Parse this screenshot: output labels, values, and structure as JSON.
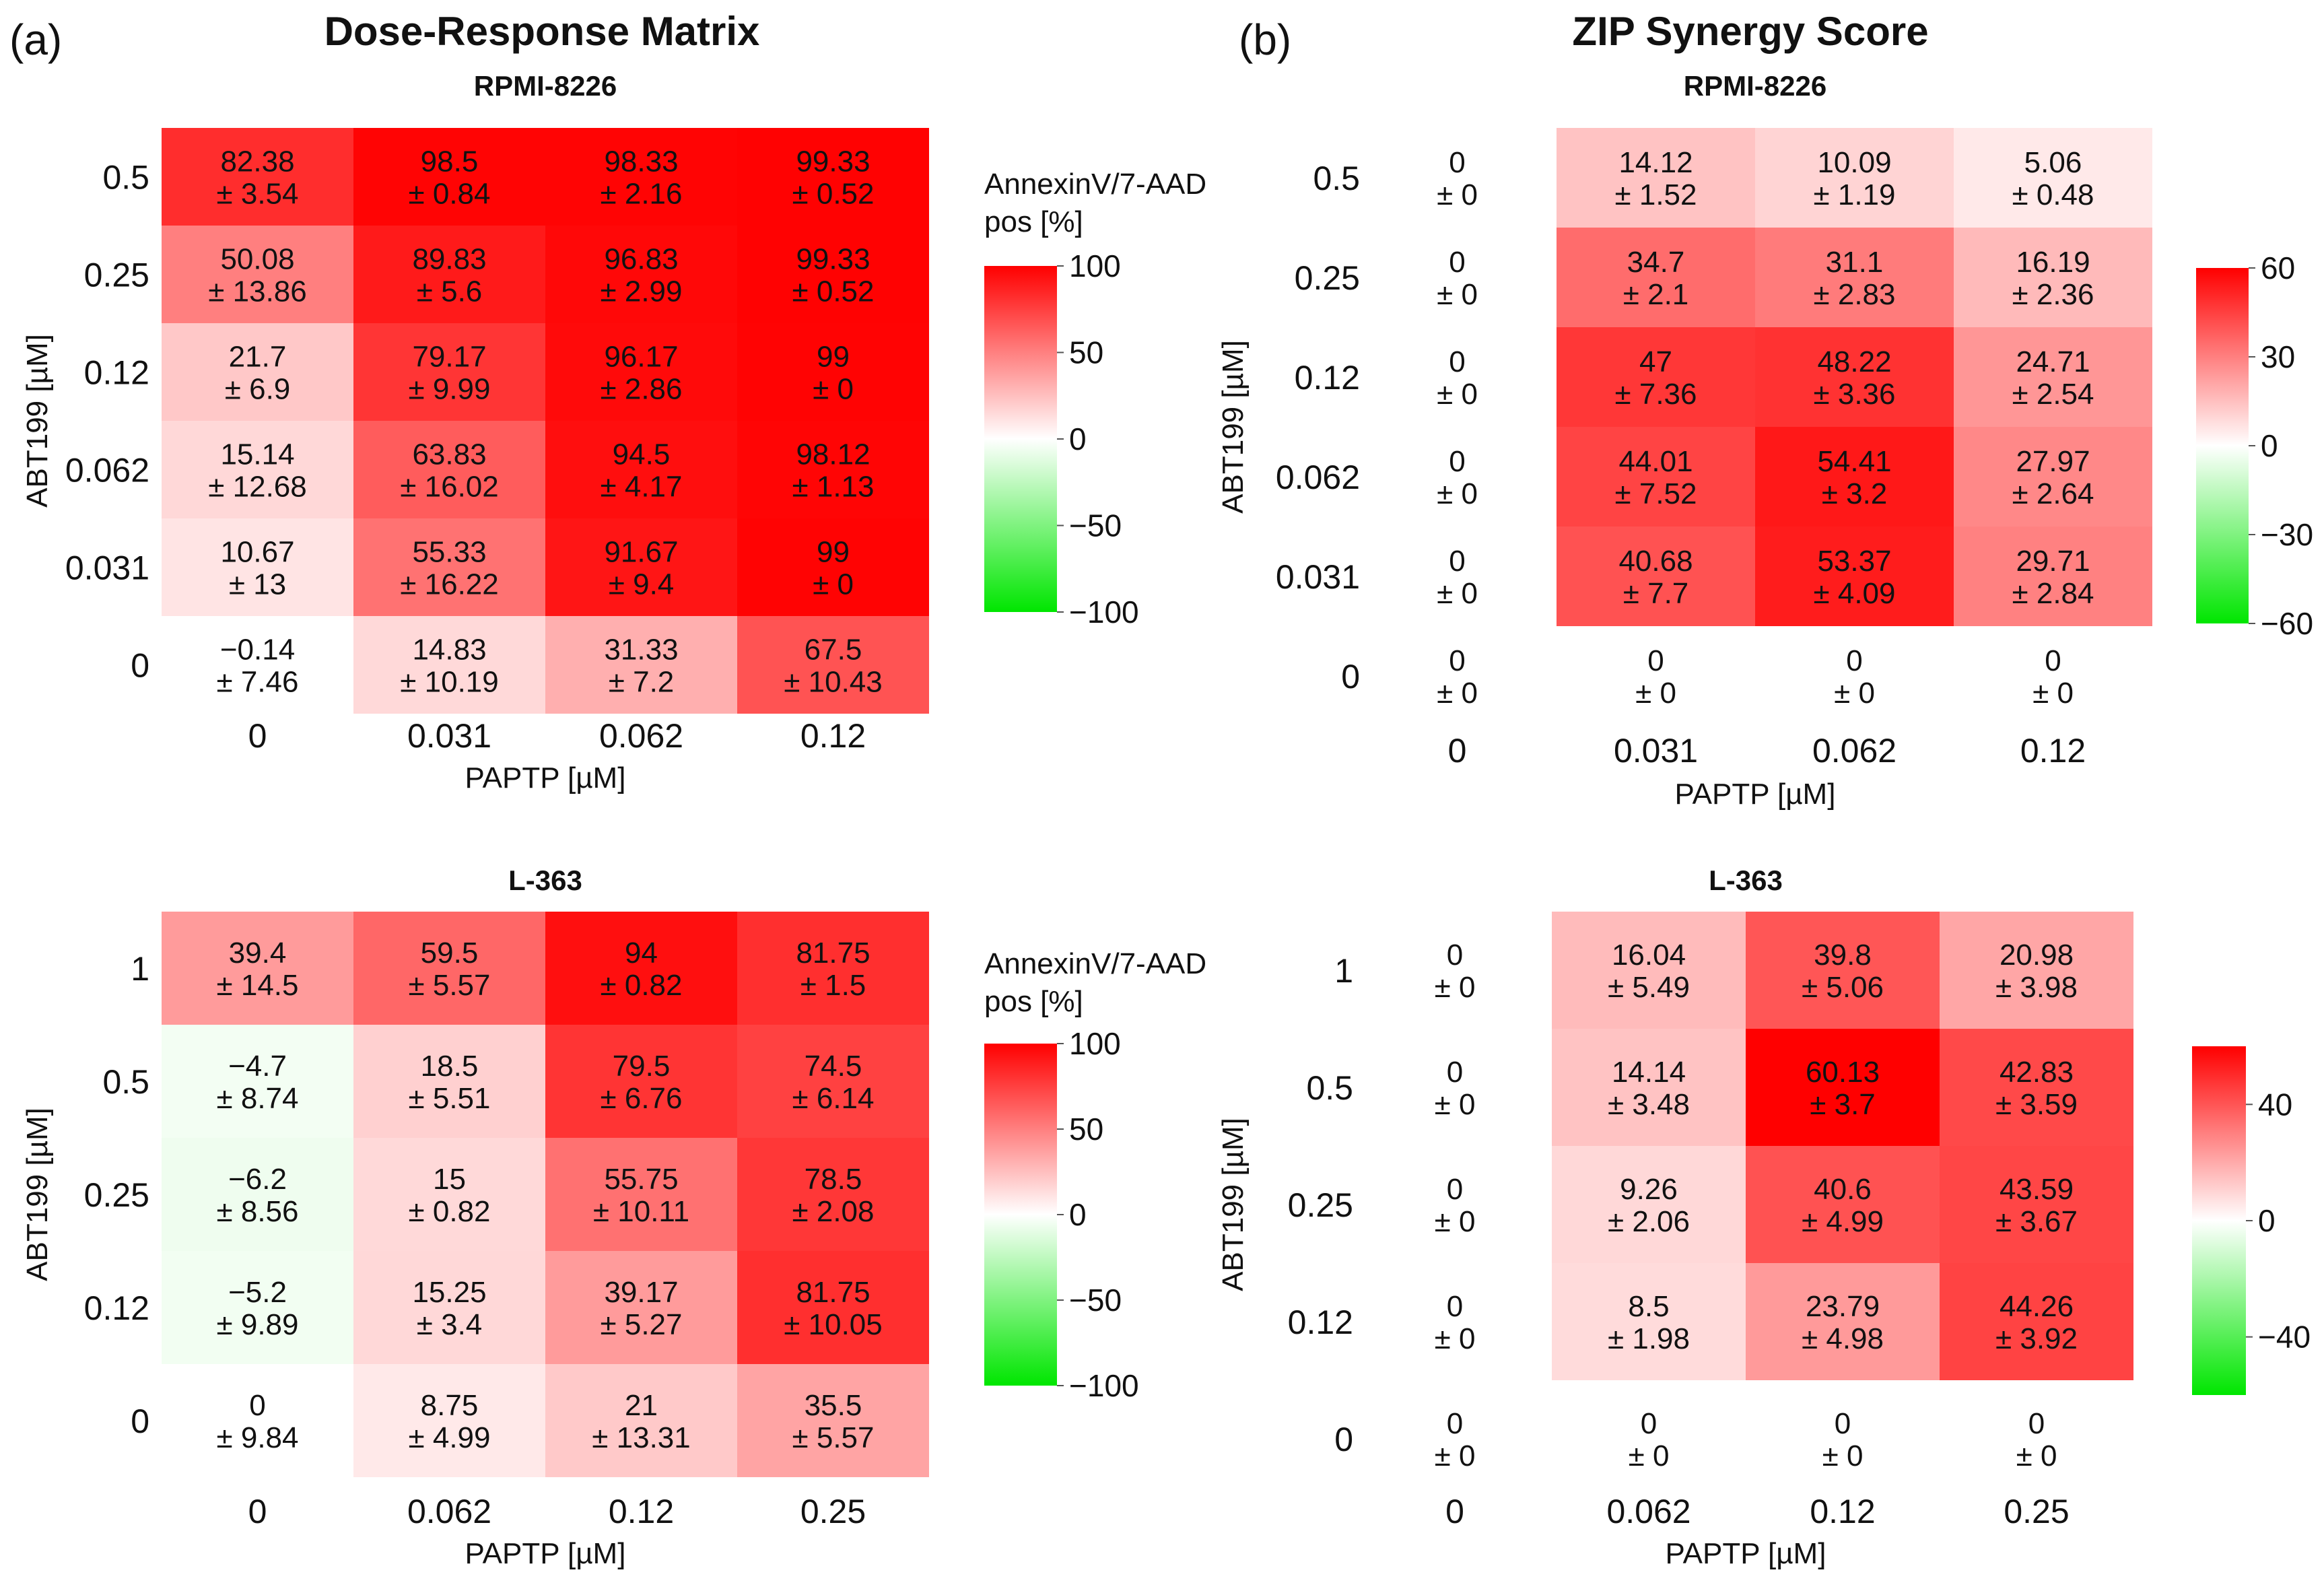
{
  "panels": {
    "a": {
      "label": "(a)",
      "title": "Dose-Response Matrix"
    },
    "b": {
      "label": "(b)",
      "title": "ZIP Synergy Score"
    }
  },
  "colors": {
    "positive": "#ff0000",
    "neutral": "#ffffff",
    "negative": "#00e600",
    "text": "#111111"
  },
  "chart_data": [
    {
      "id": "dr_rpmi",
      "type": "heatmap",
      "title": "RPMI-8226",
      "xlabel": "PAPTP [µM]",
      "ylabel": "ABT199 [µM]",
      "x": [
        "0",
        "0.031",
        "0.062",
        "0.12"
      ],
      "y": [
        "0.5",
        "0.25",
        "0.12",
        "0.062",
        "0.031",
        "0"
      ],
      "cells": [
        [
          {
            "v": "82.38",
            "e": "3.54"
          },
          {
            "v": "98.5",
            "e": "0.84"
          },
          {
            "v": "98.33",
            "e": "2.16"
          },
          {
            "v": "99.33",
            "e": "0.52"
          }
        ],
        [
          {
            "v": "50.08",
            "e": "13.86"
          },
          {
            "v": "89.83",
            "e": "5.6"
          },
          {
            "v": "96.83",
            "e": "2.99"
          },
          {
            "v": "99.33",
            "e": "0.52"
          }
        ],
        [
          {
            "v": "21.7",
            "e": "6.9"
          },
          {
            "v": "79.17",
            "e": "9.99"
          },
          {
            "v": "96.17",
            "e": "2.86"
          },
          {
            "v": "99",
            "e": "0"
          }
        ],
        [
          {
            "v": "15.14",
            "e": "12.68"
          },
          {
            "v": "63.83",
            "e": "16.02"
          },
          {
            "v": "94.5",
            "e": "4.17"
          },
          {
            "v": "98.12",
            "e": "1.13"
          }
        ],
        [
          {
            "v": "10.67",
            "e": "13"
          },
          {
            "v": "55.33",
            "e": "16.22"
          },
          {
            "v": "91.67",
            "e": "9.4"
          },
          {
            "v": "99",
            "e": "0"
          }
        ],
        [
          {
            "v": "−0.14",
            "e": "7.46"
          },
          {
            "v": "14.83",
            "e": "10.19"
          },
          {
            "v": "31.33",
            "e": "7.2"
          },
          {
            "v": "67.5",
            "e": "10.43"
          }
        ]
      ],
      "color_limit": 100,
      "legend": {
        "title_line1": "AnnexinV/7-AAD",
        "title_line2": "pos [%]",
        "ticks": [
          "100",
          "50",
          "0",
          "−50",
          "−100"
        ]
      }
    },
    {
      "id": "zip_rpmi",
      "type": "heatmap",
      "title": "RPMI-8226",
      "xlabel": "PAPTP [µM]",
      "ylabel": "ABT199 [µM]",
      "x": [
        "0",
        "0.031",
        "0.062",
        "0.12"
      ],
      "y": [
        "0.5",
        "0.25",
        "0.12",
        "0.062",
        "0.031",
        "0"
      ],
      "cells": [
        [
          {
            "v": "0",
            "e": "0"
          },
          {
            "v": "14.12",
            "e": "1.52"
          },
          {
            "v": "10.09",
            "e": "1.19"
          },
          {
            "v": "5.06",
            "e": "0.48"
          }
        ],
        [
          {
            "v": "0",
            "e": "0"
          },
          {
            "v": "34.7",
            "e": "2.1"
          },
          {
            "v": "31.1",
            "e": "2.83"
          },
          {
            "v": "16.19",
            "e": "2.36"
          }
        ],
        [
          {
            "v": "0",
            "e": "0"
          },
          {
            "v": "47",
            "e": "7.36"
          },
          {
            "v": "48.22",
            "e": "3.36"
          },
          {
            "v": "24.71",
            "e": "2.54"
          }
        ],
        [
          {
            "v": "0",
            "e": "0"
          },
          {
            "v": "44.01",
            "e": "7.52"
          },
          {
            "v": "54.41",
            "e": "3.2"
          },
          {
            "v": "27.97",
            "e": "2.64"
          }
        ],
        [
          {
            "v": "0",
            "e": "0"
          },
          {
            "v": "40.68",
            "e": "7.7"
          },
          {
            "v": "53.37",
            "e": "4.09"
          },
          {
            "v": "29.71",
            "e": "2.84"
          }
        ],
        [
          {
            "v": "0",
            "e": "0"
          },
          {
            "v": "0",
            "e": "0"
          },
          {
            "v": "0",
            "e": "0"
          },
          {
            "v": "0",
            "e": "0"
          }
        ]
      ],
      "colored": [
        [
          0,
          1
        ],
        [
          0,
          2
        ],
        [
          0,
          3
        ],
        [
          1,
          1
        ],
        [
          1,
          2
        ],
        [
          1,
          3
        ],
        [
          2,
          1
        ],
        [
          2,
          2
        ],
        [
          2,
          3
        ],
        [
          3,
          1
        ],
        [
          3,
          2
        ],
        [
          3,
          3
        ],
        [
          4,
          1
        ],
        [
          4,
          2
        ],
        [
          4,
          3
        ]
      ],
      "color_limit": 60,
      "legend": {
        "ticks": [
          "60",
          "30",
          "0",
          "−30",
          "−60"
        ]
      }
    },
    {
      "id": "dr_l363",
      "type": "heatmap",
      "title": "L-363",
      "xlabel": "PAPTP [µM]",
      "ylabel": "ABT199 [µM]",
      "x": [
        "0",
        "0.062",
        "0.12",
        "0.25"
      ],
      "y": [
        "1",
        "0.5",
        "0.25",
        "0.12",
        "0"
      ],
      "cells": [
        [
          {
            "v": "39.4",
            "e": "14.5"
          },
          {
            "v": "59.5",
            "e": "5.57"
          },
          {
            "v": "94",
            "e": "0.82"
          },
          {
            "v": "81.75",
            "e": "1.5"
          }
        ],
        [
          {
            "v": "−4.7",
            "e": "8.74"
          },
          {
            "v": "18.5",
            "e": "5.51"
          },
          {
            "v": "79.5",
            "e": "6.76"
          },
          {
            "v": "74.5",
            "e": "6.14"
          }
        ],
        [
          {
            "v": "−6.2",
            "e": "8.56"
          },
          {
            "v": "15",
            "e": "0.82"
          },
          {
            "v": "55.75",
            "e": "10.11"
          },
          {
            "v": "78.5",
            "e": "2.08"
          }
        ],
        [
          {
            "v": "−5.2",
            "e": "9.89"
          },
          {
            "v": "15.25",
            "e": "3.4"
          },
          {
            "v": "39.17",
            "e": "5.27"
          },
          {
            "v": "81.75",
            "e": "10.05"
          }
        ],
        [
          {
            "v": "0",
            "e": "9.84"
          },
          {
            "v": "8.75",
            "e": "4.99"
          },
          {
            "v": "21",
            "e": "13.31"
          },
          {
            "v": "35.5",
            "e": "5.57"
          }
        ]
      ],
      "color_limit": 100,
      "legend": {
        "title_line1": "AnnexinV/7-AAD",
        "title_line2": "pos [%]",
        "ticks": [
          "100",
          "50",
          "0",
          "−50",
          "−100"
        ]
      }
    },
    {
      "id": "zip_l363",
      "type": "heatmap",
      "title": "L-363",
      "xlabel": "PAPTP [µM]",
      "ylabel": "ABT199 [µM]",
      "x": [
        "0",
        "0.062",
        "0.12",
        "0.25"
      ],
      "y": [
        "1",
        "0.5",
        "0.25",
        "0.12",
        "0"
      ],
      "cells": [
        [
          {
            "v": "0",
            "e": "0"
          },
          {
            "v": "16.04",
            "e": "5.49"
          },
          {
            "v": "39.8",
            "e": "5.06"
          },
          {
            "v": "20.98",
            "e": "3.98"
          }
        ],
        [
          {
            "v": "0",
            "e": "0"
          },
          {
            "v": "14.14",
            "e": "3.48"
          },
          {
            "v": "60.13",
            "e": "3.7"
          },
          {
            "v": "42.83",
            "e": "3.59"
          }
        ],
        [
          {
            "v": "0",
            "e": "0"
          },
          {
            "v": "9.26",
            "e": "2.06"
          },
          {
            "v": "40.6",
            "e": "4.99"
          },
          {
            "v": "43.59",
            "e": "3.67"
          }
        ],
        [
          {
            "v": "0",
            "e": "0"
          },
          {
            "v": "8.5",
            "e": "1.98"
          },
          {
            "v": "23.79",
            "e": "4.98"
          },
          {
            "v": "44.26",
            "e": "3.92"
          }
        ],
        [
          {
            "v": "0",
            "e": "0"
          },
          {
            "v": "0",
            "e": "0"
          },
          {
            "v": "0",
            "e": "0"
          },
          {
            "v": "0",
            "e": "0"
          }
        ]
      ],
      "colored": [
        [
          0,
          1
        ],
        [
          0,
          2
        ],
        [
          0,
          3
        ],
        [
          1,
          1
        ],
        [
          1,
          2
        ],
        [
          1,
          3
        ],
        [
          2,
          1
        ],
        [
          2,
          2
        ],
        [
          2,
          3
        ],
        [
          3,
          1
        ],
        [
          3,
          2
        ],
        [
          3,
          3
        ]
      ],
      "color_limit": 60,
      "legend": {
        "ticks": [
          "40",
          "0",
          "−40"
        ],
        "tick_values": [
          40,
          0,
          -40
        ]
      }
    }
  ]
}
